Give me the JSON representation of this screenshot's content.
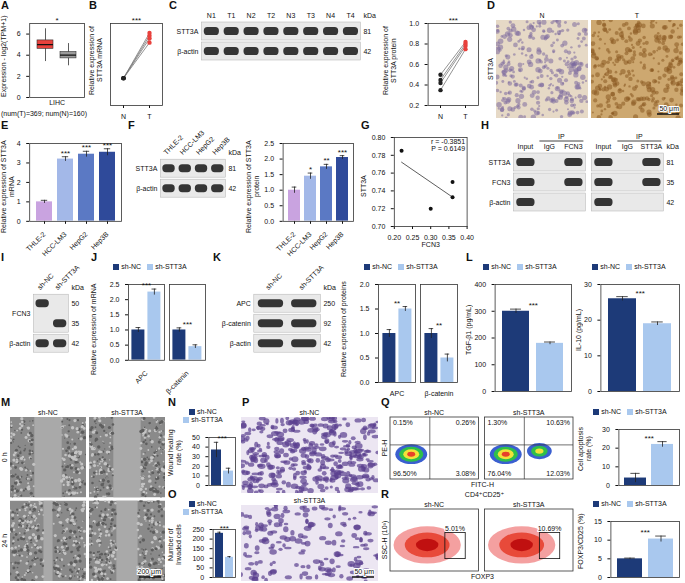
{
  "chart_data": [
    {
      "panel": "A",
      "type": "box",
      "y_label": "Expression - log2(TPM+1)",
      "x_label": "(num(T)=369; num(N)=160)",
      "categories": [
        "LIHC"
      ],
      "series": [
        {
          "color": "#e8413c",
          "min": [
            3.4
          ],
          "q1": [
            4.6
          ],
          "median": [
            5.0
          ],
          "q3": [
            5.4
          ],
          "max": [
            6.5
          ]
        },
        {
          "color": "#9a9a9a",
          "min": [
            3.0
          ],
          "q1": [
            3.7
          ],
          "median": [
            4.0
          ],
          "q3": [
            4.3
          ],
          "max": [
            5.1
          ]
        }
      ],
      "ylim": [
        0,
        7
      ],
      "yticks": [
        0,
        2,
        4,
        6
      ],
      "significance": "*"
    },
    {
      "panel": "B",
      "type": "line",
      "y_label": "Relative expression of STT3A mRNA",
      "categories": [
        "N",
        "T"
      ],
      "colors": [
        "#222222",
        "#e8413c"
      ],
      "series": [
        {
          "values": [
            1.0,
            2.3
          ]
        },
        {
          "values": [
            1.0,
            2.45
          ]
        },
        {
          "values": [
            1.0,
            2.55
          ]
        },
        {
          "values": [
            1.0,
            2.65
          ]
        }
      ],
      "ylim": [
        0,
        3
      ],
      "tick_labels": "x",
      "significance": "***"
    },
    {
      "panel": "C",
      "type": "line",
      "y_label": "Relative expression of STT3A protein",
      "categories": [
        "N",
        "T"
      ],
      "colors": [
        "#222222",
        "#e8413c"
      ],
      "series": [
        {
          "values": [
            0.35,
            0.75
          ]
        },
        {
          "values": [
            0.42,
            0.78
          ]
        },
        {
          "values": [
            0.45,
            0.8
          ]
        },
        {
          "values": [
            0.5,
            0.82
          ]
        }
      ],
      "ylim": [
        0.2,
        1.0
      ],
      "yticks": [
        0.2,
        0.4,
        0.6,
        0.8,
        {
          "value": 1.0,
          "label": "1.0"
        }
      ],
      "significance": "***"
    },
    {
      "panel": "E",
      "type": "bar",
      "y_label": "Relative expression of STT3A mRNA",
      "categories": [
        "THLE-2",
        "HCC-LM3",
        "HepG2",
        "Hep3B"
      ],
      "values": [
        1.0,
        3.2,
        3.45,
        3.55
      ],
      "errors": [
        0.08,
        0.12,
        0.15,
        0.18
      ],
      "colors": [
        "#c9a3e0",
        "#a3b8e8",
        "#5b79c4",
        "#2f4a9a"
      ],
      "ylim": [
        0,
        4
      ],
      "yticks": [
        0,
        1,
        2,
        3,
        4
      ],
      "significance": [
        null,
        "***",
        "***",
        "***"
      ]
    },
    {
      "panel": "F",
      "type": "bar",
      "y_label": "Relative expression of STT3A protein",
      "categories": [
        "THLE-2",
        "HCC-LM3",
        "HepG2",
        "Hep3B"
      ],
      "values": [
        1.0,
        1.45,
        1.75,
        2.05
      ],
      "errors": [
        0.1,
        0.1,
        0.08,
        0.06
      ],
      "colors": [
        "#c9a3e0",
        "#a3b8e8",
        "#5b79c4",
        "#2f4a9a"
      ],
      "ylim": [
        0,
        2.5
      ],
      "yticks": [
        {
          "value": 0,
          "label": "0.0"
        },
        0.5,
        {
          "value": 1,
          "label": "1.0"
        },
        1.5,
        {
          "value": 2,
          "label": "2.0"
        },
        2.5
      ],
      "significance": [
        null,
        "*",
        "**",
        "***"
      ]
    },
    {
      "panel": "G",
      "type": "scatter",
      "x_label": "FCN3",
      "y_label": "STT3A",
      "x": [
        0.22,
        0.3,
        0.36,
        0.36
      ],
      "values": [
        0.785,
        0.72,
        0.75,
        0.733
      ],
      "xlim": [
        0.2,
        0.4
      ],
      "xticks": [
        {
          "value": 0.2,
          "label": "0.20"
        },
        0.25,
        {
          "value": 0.3,
          "label": "0.30"
        },
        0.35,
        {
          "value": 0.4,
          "label": "0.40"
        }
      ],
      "ylim": [
        0.7,
        0.8
      ],
      "yticks": [
        {
          "value": 0.7,
          "label": "0.70"
        },
        0.72,
        0.74,
        0.76,
        0.78,
        {
          "value": 0.8,
          "label": "0.80"
        }
      ],
      "annotations": [
        "r = -0.3851",
        "P = 0.6149"
      ]
    },
    {
      "panel": "J",
      "type": "bar",
      "y_label": "Relative expression of mRNA",
      "categories": [
        "APC",
        "β-catenin"
      ],
      "legend": "top",
      "series": [
        {
          "name": "sh-NC",
          "color": "#1d3a78",
          "values": [
            1.0,
            1.0
          ],
          "errors": [
            0.08,
            0.07
          ]
        },
        {
          "name": "sh-STT3A",
          "color": "#a9c8ee",
          "values": [
            2.25,
            0.45
          ],
          "errors": [
            0.1,
            0.06
          ]
        }
      ],
      "ylim": [
        0,
        2.5
      ],
      "yticks": [
        {
          "value": 0,
          "label": "0.0"
        },
        0.5,
        {
          "value": 1,
          "label": "1.0"
        },
        1.5,
        {
          "value": 2,
          "label": "2.0"
        },
        2.5
      ],
      "significance": [
        "***",
        "***"
      ]
    },
    {
      "panel": "K",
      "type": "bar",
      "y_label": "Relative expression of proteins",
      "categories": [
        "APC",
        "β-catenin"
      ],
      "legend": "top",
      "series": [
        {
          "name": "sh-NC",
          "color": "#1d3a78",
          "values": [
            1.0,
            1.0
          ],
          "errors": [
            0.08,
            0.1
          ]
        },
        {
          "name": "sh-STT3A",
          "color": "#a9c8ee",
          "values": [
            1.5,
            0.5
          ],
          "errors": [
            0.05,
            0.08
          ]
        }
      ],
      "ylim": [
        0,
        2
      ],
      "yticks": [
        {
          "value": 0,
          "label": "0.0"
        },
        0.5,
        {
          "value": 1,
          "label": "1.0"
        },
        1.5,
        {
          "value": 2,
          "label": "2.0"
        }
      ],
      "significance": [
        "**",
        "**"
      ]
    },
    {
      "panel": "L",
      "type": "bar",
      "y_label": "TGF-β1 (pg/mL)",
      "legend": "top",
      "tick_labels": "y",
      "series": [
        {
          "name": "sh-NC",
          "color": "#1d3a78",
          "values": [
            300
          ],
          "errors": [
            8
          ]
        },
        {
          "name": "sh-STT3A",
          "color": "#a9c8ee",
          "values": [
            180
          ],
          "errors": [
            5
          ]
        }
      ],
      "ylim": [
        0,
        400
      ],
      "yticks": [
        0,
        100,
        200,
        300,
        400
      ],
      "significance": [
        "***"
      ]
    },
    {
      "panel": "L",
      "type": "bar",
      "y_label": "IL-10 (pg/mL)",
      "legend": "top",
      "tick_labels": "y",
      "series": [
        {
          "name": "sh-NC",
          "color": "#1d3a78",
          "values": [
            26
          ],
          "errors": [
            0.6
          ]
        },
        {
          "name": "sh-STT3A",
          "color": "#a9c8ee",
          "values": [
            19
          ],
          "errors": [
            0.5
          ]
        }
      ],
      "ylim": [
        0,
        30
      ],
      "yticks": [
        0,
        10,
        20,
        30
      ],
      "significance": [
        "***"
      ]
    },
    {
      "panel": "N",
      "type": "bar",
      "y_label": "Wound healing rate (%)",
      "legend": "top",
      "tick_labels": "y",
      "series": [
        {
          "name": "sh-NC",
          "color": "#1d3a78",
          "values": [
            37
          ],
          "errors": [
            8
          ]
        },
        {
          "name": "sh-STT3A",
          "color": "#a9c8ee",
          "values": [
            15
          ],
          "errors": [
            3
          ]
        }
      ],
      "ylim": [
        0,
        50
      ],
      "yticks": [
        0,
        10,
        20,
        30,
        40,
        50
      ],
      "significance": [
        "***"
      ]
    },
    {
      "panel": "O",
      "type": "bar",
      "y_label": "Number of Invaded cells",
      "legend": "top",
      "tick_labels": "y",
      "series": [
        {
          "name": "sh-NC",
          "color": "#1d3a78",
          "values": [
            230
          ],
          "errors": [
            6
          ]
        },
        {
          "name": "sh-STT3A",
          "color": "#a9c8ee",
          "values": [
            105
          ],
          "errors": [
            4
          ]
        }
      ],
      "ylim": [
        0,
        250
      ],
      "yticks": [
        0,
        50,
        100,
        150,
        200,
        250
      ],
      "significance": [
        "***"
      ]
    },
    {
      "panel": "Q",
      "type": "bar",
      "y_label": "Cell apoptosis rate (%)",
      "legend": "top",
      "tick_labels": "y",
      "series": [
        {
          "name": "sh-NC",
          "color": "#1d3a78",
          "values": [
            4
          ],
          "errors": [
            2.5
          ]
        },
        {
          "name": "sh-STT3A",
          "color": "#a9c8ee",
          "values": [
            22
          ],
          "errors": [
            1.5
          ]
        }
      ],
      "ylim": [
        0,
        30
      ],
      "yticks": [
        0,
        10,
        20,
        30
      ],
      "significance": [
        "***"
      ]
    },
    {
      "panel": "R",
      "type": "bar",
      "y_label": "FOXP3/CD25 (%)",
      "legend": "top",
      "tick_labels": "y",
      "series": [
        {
          "name": "sh-NC",
          "color": "#1d3a78",
          "values": [
            5
          ],
          "errors": [
            0.2
          ]
        },
        {
          "name": "sh-STT3A",
          "color": "#a9c8ee",
          "values": [
            10.3
          ],
          "errors": [
            0.8
          ]
        }
      ],
      "ylim": [
        0,
        15
      ],
      "yticks": [
        0,
        5,
        10,
        15
      ],
      "significance": [
        "***"
      ]
    }
  ],
  "blots": [
    {
      "panel": "C",
      "unit": "kDa",
      "lanes": [
        "N1",
        "T1",
        "N2",
        "T2",
        "N3",
        "T3",
        "N4",
        "T4"
      ],
      "rows": [
        {
          "label": "STT3A",
          "kda": "81"
        },
        {
          "label": "β-actin",
          "kda": "42"
        }
      ]
    },
    {
      "panel": "F",
      "unit": "kDa",
      "lanes": [
        "THLE-2",
        "HCC-LM3",
        "HepG2",
        "Hep3B"
      ],
      "rows": [
        {
          "label": "STT3A",
          "kda": "81"
        },
        {
          "label": "β-actin",
          "kda": "42"
        }
      ]
    },
    {
      "panel": "H",
      "unit": "kDa",
      "groups": [
        {
          "lanes": [
            "Input",
            "IgG",
            "FCN3"
          ],
          "span_label": "IP"
        },
        {
          "lanes": [
            "Input",
            "IgG",
            "STT3A"
          ],
          "span_label": "IP"
        }
      ],
      "rows": [
        {
          "label": "STT3A",
          "kda": "81"
        },
        {
          "label": "FCN3",
          "kda": "35"
        },
        {
          "label": "β-actin",
          "kda": "42"
        }
      ]
    },
    {
      "panel": "I",
      "unit": "kDa",
      "lanes": [
        "sh-NC",
        "sh-STT3A"
      ],
      "rows": [
        {
          "label": "FCN3",
          "kda": [
            "50",
            "35"
          ]
        },
        {
          "label": "β-actin",
          "kda": "42"
        }
      ]
    },
    {
      "panel": "K",
      "unit": "kDa",
      "lanes": [
        "sh-NC",
        "sh-STT3A"
      ],
      "rows": [
        {
          "label": "APC",
          "kda": "250"
        },
        {
          "label": "β-catenin",
          "kda": "92"
        },
        {
          "label": "β-actin",
          "kda": "42"
        }
      ]
    }
  ],
  "images": [
    {
      "panel": "D",
      "columns": [
        "N",
        "T"
      ],
      "row_label": "STT3A",
      "scale_bar": "50 μm"
    },
    {
      "panel": "M",
      "columns": [
        "sh-NC",
        "sh-STT3A"
      ],
      "rows": [
        "0 h",
        "24 h"
      ],
      "scale_bar": "200 μm"
    },
    {
      "panel": "P",
      "rows": [
        "sh-NC",
        "sh-STT3A"
      ],
      "scale_bar": "50 μm"
    }
  ],
  "flow": [
    {
      "panel": "Q",
      "y_label": "PE-H",
      "x_label": "FITC-H",
      "plots": [
        {
          "title": "sh-NC",
          "quadrants": [
            "0.15%",
            "0.26%",
            "96.50%",
            "3.08%"
          ]
        },
        {
          "title": "sh-STT3A",
          "quadrants": [
            "1.30%",
            "10.63%",
            "76.04%",
            "12.03%"
          ]
        }
      ]
    },
    {
      "panel": "R",
      "header": "CD4⁺CD25⁺",
      "y_label": "SSC-H (10³)",
      "x_label": "FOXP3",
      "plots": [
        {
          "title": "sh-NC",
          "gate": "5.01%"
        },
        {
          "title": "sh-STT3A",
          "gate": "10.69%"
        }
      ]
    }
  ]
}
